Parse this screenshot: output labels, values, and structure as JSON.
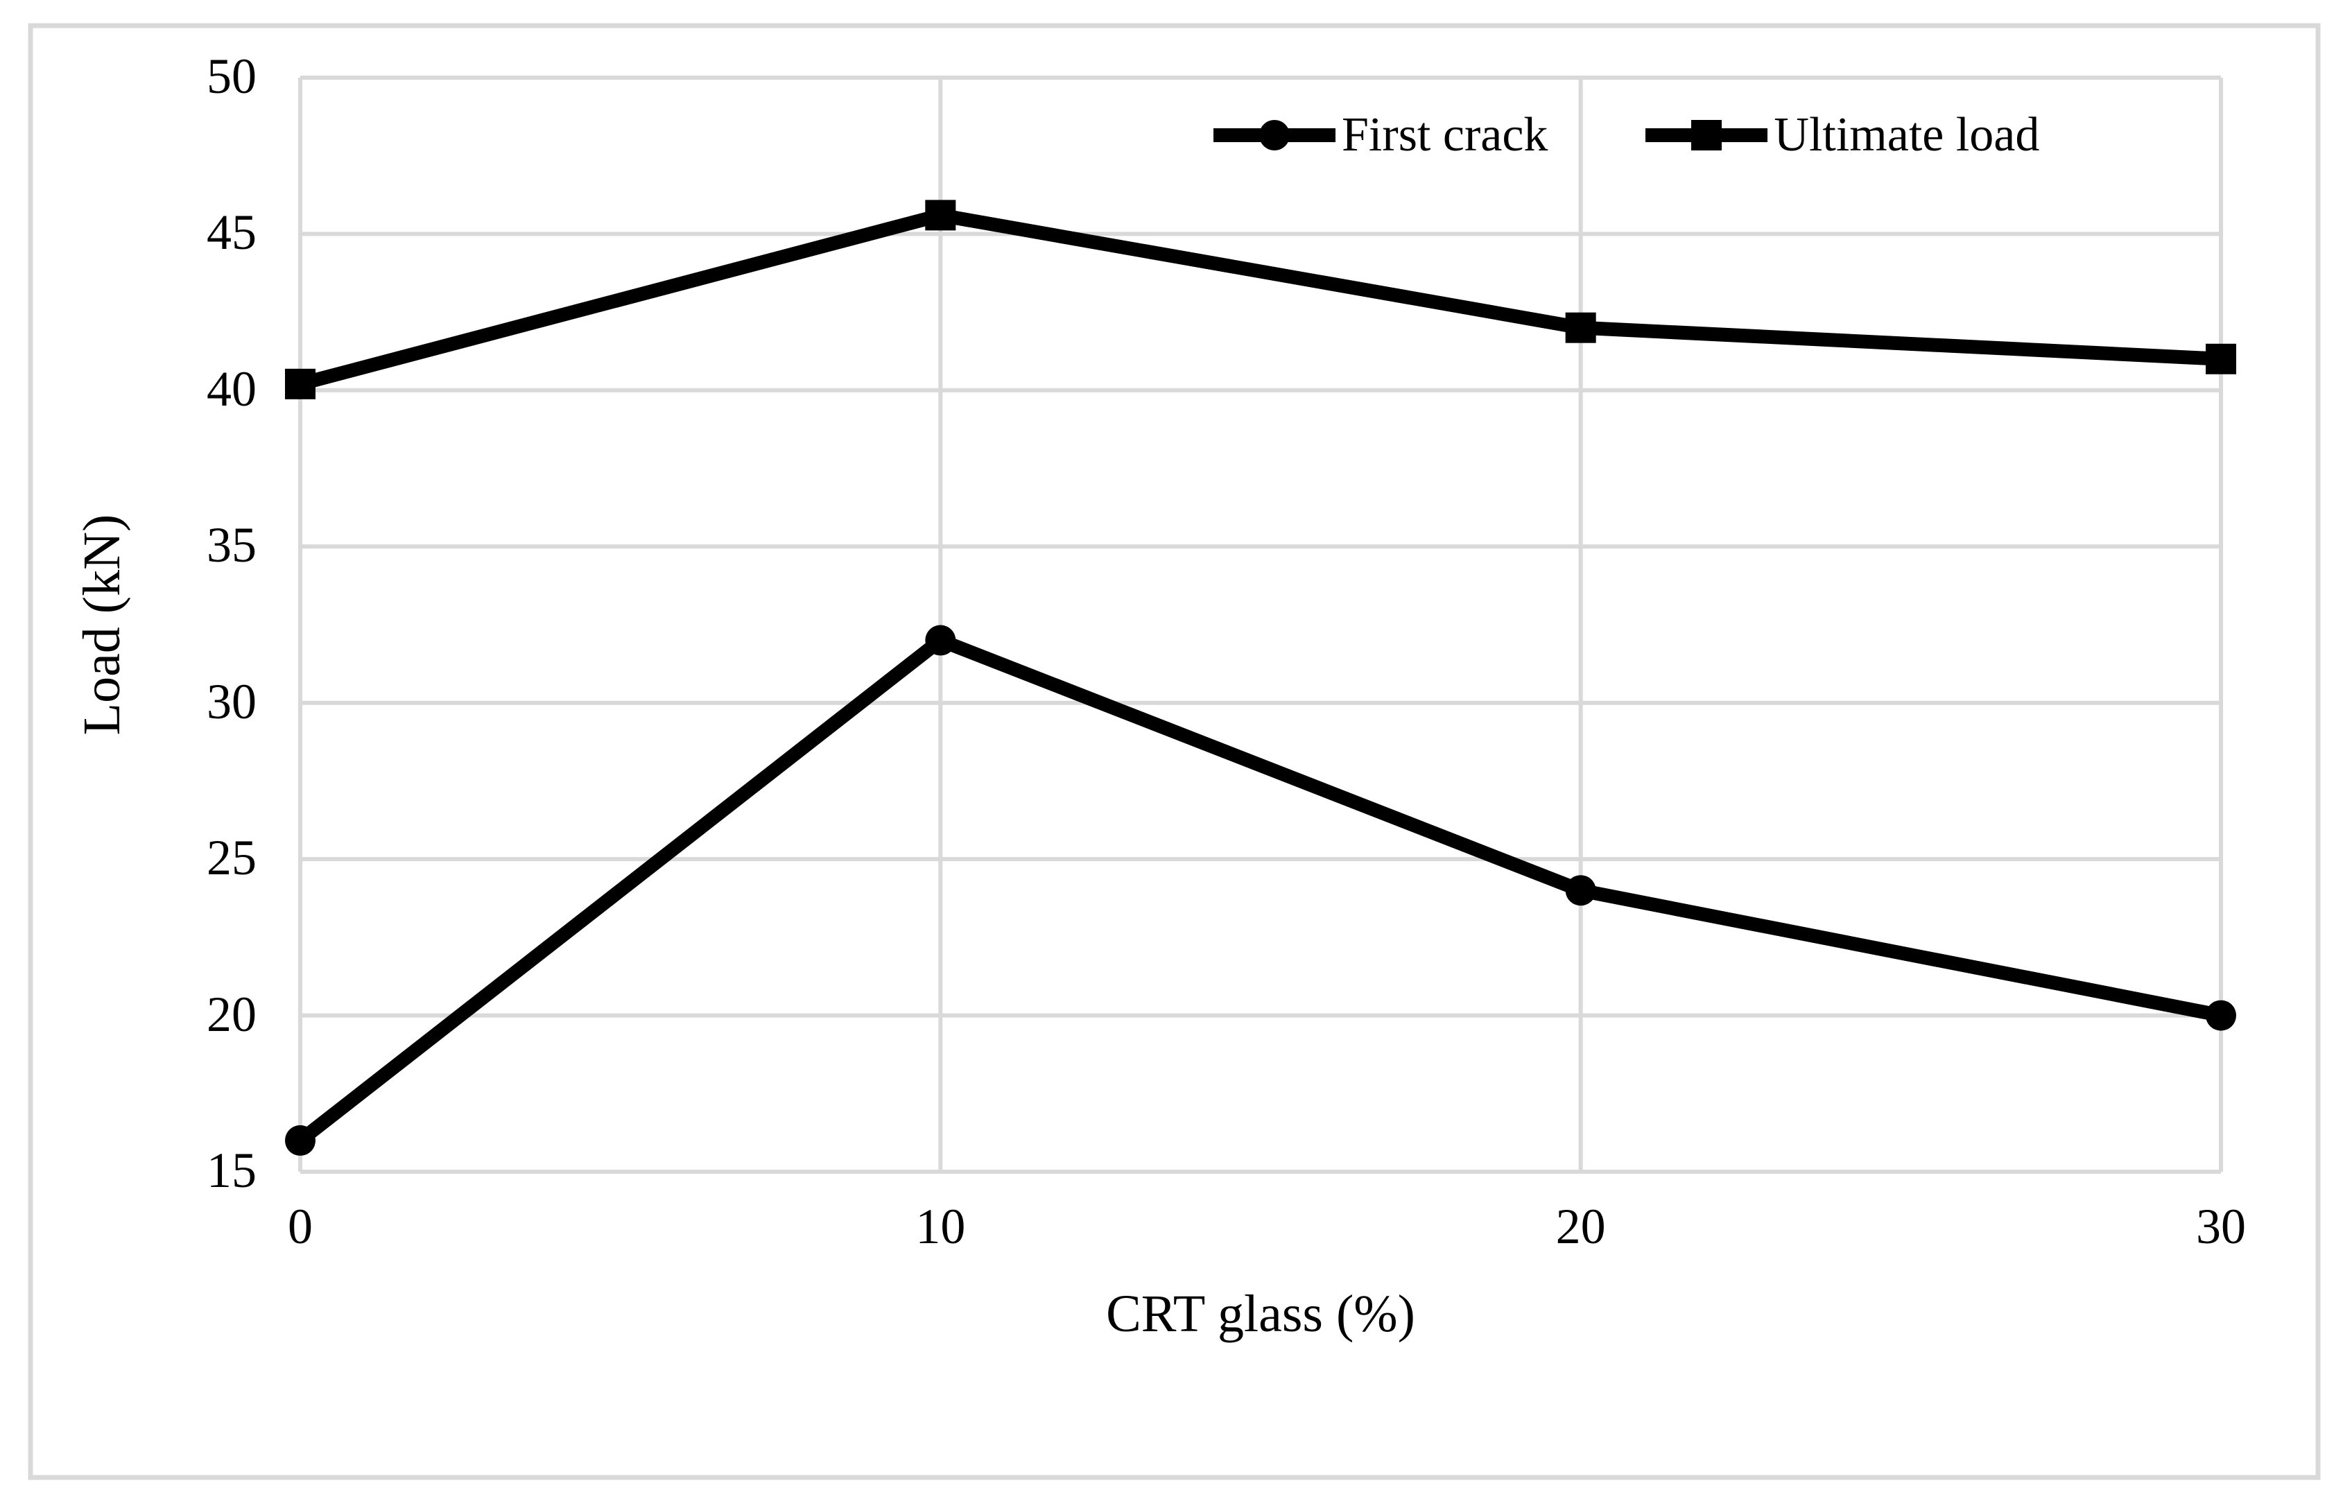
{
  "figure": {
    "background": "#ffffff",
    "border_color": "#d9d9d9"
  },
  "chart_data": {
    "type": "line",
    "title": "",
    "xlabel": "CRT glass (%)",
    "ylabel": "Load (kN)",
    "x": [
      0,
      10,
      20,
      30
    ],
    "xticks": [
      0,
      10,
      20,
      30
    ],
    "yticks": [
      15,
      20,
      25,
      30,
      35,
      40,
      45,
      50
    ],
    "xlim": [
      0,
      30
    ],
    "ylim": [
      15,
      50
    ],
    "grid": true,
    "legend_position": "top-center-inside",
    "gridline_color": "#d9d9d9",
    "series_color": "#000000",
    "series": [
      {
        "name": "First crack",
        "marker": "circle",
        "values": [
          16,
          32,
          24,
          20
        ]
      },
      {
        "name": "Ultimate load",
        "marker": "square",
        "values": [
          40.2,
          45.6,
          42,
          41
        ]
      }
    ]
  }
}
